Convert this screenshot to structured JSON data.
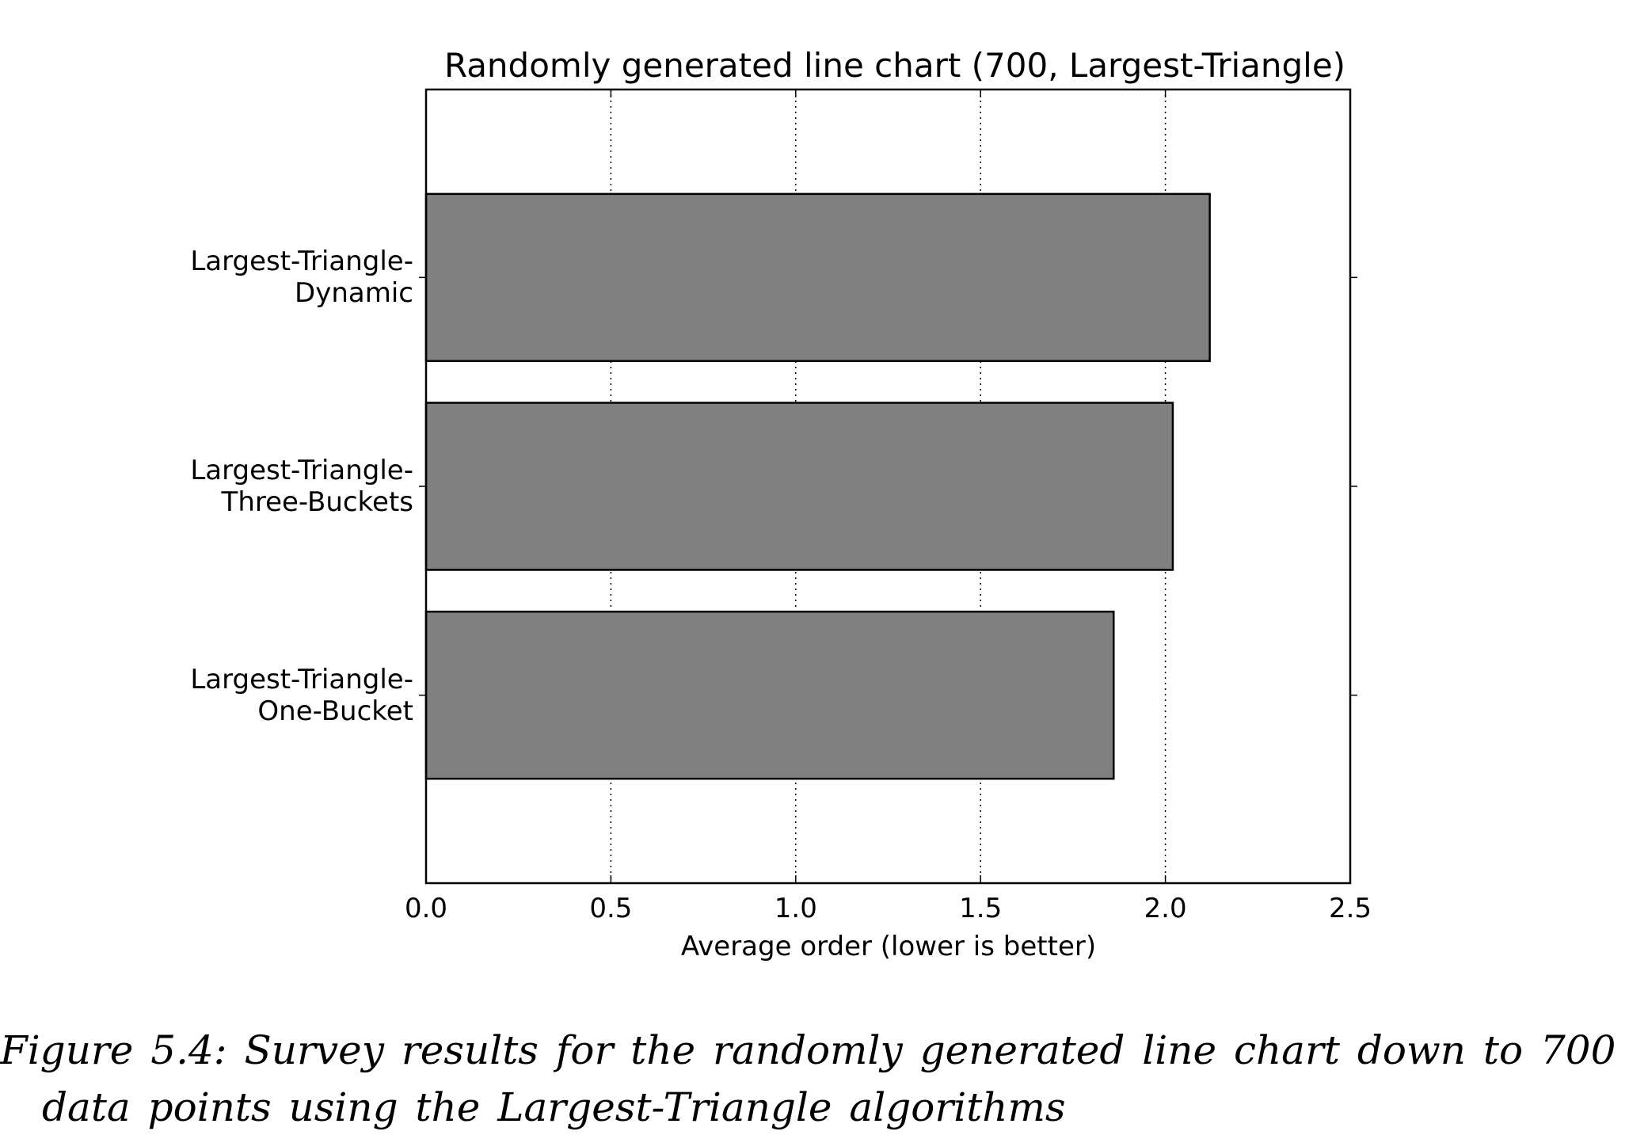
{
  "chart_data": {
    "type": "barh",
    "title": "Randomly generated line chart (700, Largest-Triangle)",
    "xlabel": "Average order (lower is better)",
    "categories": [
      "Largest-Triangle-\nDynamic",
      "Largest-Triangle-\nThree-Buckets",
      "Largest-Triangle-\nOne-Bucket"
    ],
    "values": [
      2.12,
      2.02,
      1.86
    ],
    "color": "#808080",
    "xlim": [
      0,
      2.5
    ],
    "xticks": [
      {
        "value": 0,
        "label": "0.0"
      },
      {
        "value": 0.5,
        "label": "0.5"
      },
      {
        "value": 1,
        "label": "1.0"
      },
      {
        "value": 1.5,
        "label": "1.5"
      },
      {
        "value": 2,
        "label": "2.0"
      },
      {
        "value": 2.5,
        "label": "2.5"
      }
    ],
    "grid": true
  },
  "caption": "Figure 5.4: Survey results for the randomly generated line chart down to 700 data points using the Largest-Triangle algorithms"
}
